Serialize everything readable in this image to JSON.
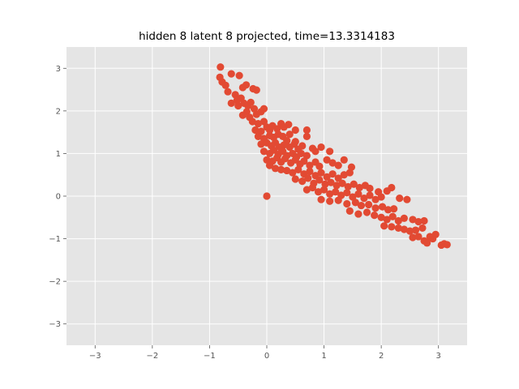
{
  "chart_data": {
    "type": "scatter",
    "title": "hidden 8 latent 8 projected, time=13.3314183",
    "xlabel": "",
    "ylabel": "",
    "xlim": [
      -3.5,
      3.5
    ],
    "ylim": [
      -3.5,
      3.5
    ],
    "xticks": [
      -3,
      -2,
      -1,
      0,
      1,
      2,
      3
    ],
    "yticks": [
      -3,
      -2,
      -1,
      0,
      1,
      2,
      3
    ],
    "xtick_labels": [
      "−3",
      "−2",
      "−1",
      "0",
      "1",
      "2",
      "3"
    ],
    "ytick_labels": [
      "−3",
      "−2",
      "−1",
      "0",
      "1",
      "2",
      "3"
    ],
    "grid": true,
    "style": "ggplot",
    "colors": {
      "background": "#e5e5e5",
      "grid": "#ffffff",
      "marker": "#e24a33",
      "tick_text": "#555555"
    },
    "series": [
      {
        "points": [
          [
            -0.81,
            3.03
          ],
          [
            -0.82,
            2.79
          ],
          [
            -0.78,
            2.68
          ],
          [
            -0.62,
            2.87
          ],
          [
            -0.48,
            2.83
          ],
          [
            -0.42,
            2.55
          ],
          [
            -0.36,
            2.61
          ],
          [
            -0.24,
            2.52
          ],
          [
            -0.18,
            2.49
          ],
          [
            -0.72,
            2.6
          ],
          [
            -0.68,
            2.45
          ],
          [
            -0.55,
            2.38
          ],
          [
            -0.52,
            2.25
          ],
          [
            -0.45,
            2.3
          ],
          [
            -0.62,
            2.18
          ],
          [
            -0.5,
            2.12
          ],
          [
            -0.4,
            2.18
          ],
          [
            -0.33,
            2.12
          ],
          [
            -0.28,
            2.2
          ],
          [
            -0.22,
            2.05
          ],
          [
            -0.35,
            1.98
          ],
          [
            -0.42,
            1.9
          ],
          [
            -0.3,
            1.85
          ],
          [
            -0.18,
            1.92
          ],
          [
            -0.1,
            1.98
          ],
          [
            -0.05,
            2.05
          ],
          [
            -0.25,
            1.75
          ],
          [
            -0.15,
            1.7
          ],
          [
            -0.05,
            1.75
          ],
          [
            0.0,
            1.62
          ],
          [
            -0.2,
            1.55
          ],
          [
            -0.1,
            1.52
          ],
          [
            0.05,
            1.55
          ],
          [
            0.1,
            1.65
          ],
          [
            0.18,
            1.58
          ],
          [
            0.25,
            1.7
          ],
          [
            0.3,
            1.62
          ],
          [
            0.38,
            1.68
          ],
          [
            0.5,
            1.55
          ],
          [
            0.7,
            1.55
          ],
          [
            -0.15,
            1.4
          ],
          [
            -0.05,
            1.35
          ],
          [
            0.05,
            1.42
          ],
          [
            0.12,
            1.38
          ],
          [
            0.2,
            1.45
          ],
          [
            0.28,
            1.4
          ],
          [
            0.35,
            1.3
          ],
          [
            -0.1,
            1.22
          ],
          [
            0.0,
            1.25
          ],
          [
            0.08,
            1.18
          ],
          [
            0.15,
            1.25
          ],
          [
            0.22,
            1.15
          ],
          [
            0.3,
            1.2
          ],
          [
            0.4,
            1.15
          ],
          [
            0.48,
            1.22
          ],
          [
            0.55,
            1.1
          ],
          [
            0.62,
            1.18
          ],
          [
            -0.05,
            1.05
          ],
          [
            0.05,
            1.0
          ],
          [
            0.12,
            1.08
          ],
          [
            0.2,
            0.98
          ],
          [
            0.28,
            1.05
          ],
          [
            0.35,
            0.95
          ],
          [
            0.45,
            1.0
          ],
          [
            0.52,
            0.92
          ],
          [
            0.6,
            1.0
          ],
          [
            0.7,
            0.95
          ],
          [
            0.85,
            1.05
          ],
          [
            0.95,
            1.15
          ],
          [
            0.0,
            0.85
          ],
          [
            0.1,
            0.82
          ],
          [
            0.18,
            0.9
          ],
          [
            0.25,
            0.8
          ],
          [
            0.32,
            0.88
          ],
          [
            0.42,
            0.78
          ],
          [
            0.5,
            0.85
          ],
          [
            0.58,
            0.75
          ],
          [
            0.65,
            0.82
          ],
          [
            0.75,
            0.72
          ],
          [
            0.85,
            0.8
          ],
          [
            0.92,
            0.7
          ],
          [
            1.05,
            0.85
          ],
          [
            1.15,
            0.78
          ],
          [
            1.25,
            0.72
          ],
          [
            0.05,
            0.72
          ],
          [
            0.15,
            0.65
          ],
          [
            0.25,
            0.62
          ],
          [
            0.35,
            0.6
          ],
          [
            0.45,
            0.55
          ],
          [
            0.55,
            0.62
          ],
          [
            0.65,
            0.52
          ],
          [
            0.75,
            0.58
          ],
          [
            0.85,
            0.48
          ],
          [
            0.95,
            0.55
          ],
          [
            1.05,
            0.45
          ],
          [
            1.15,
            0.52
          ],
          [
            1.25,
            0.42
          ],
          [
            1.35,
            0.5
          ],
          [
            1.45,
            0.55
          ],
          [
            1.48,
            0.68
          ],
          [
            1.35,
            0.85
          ],
          [
            0.5,
            0.4
          ],
          [
            0.62,
            0.35
          ],
          [
            0.72,
            0.42
          ],
          [
            0.82,
            0.3
          ],
          [
            0.92,
            0.38
          ],
          [
            1.02,
            0.28
          ],
          [
            1.12,
            0.32
          ],
          [
            1.22,
            0.25
          ],
          [
            1.32,
            0.3
          ],
          [
            1.42,
            0.22
          ],
          [
            1.52,
            0.28
          ],
          [
            1.62,
            0.2
          ],
          [
            1.72,
            0.25
          ],
          [
            1.8,
            0.18
          ],
          [
            0.7,
            0.15
          ],
          [
            0.8,
            0.2
          ],
          [
            0.9,
            0.1
          ],
          [
            1.0,
            0.15
          ],
          [
            1.1,
            0.05
          ],
          [
            1.2,
            0.1
          ],
          [
            1.3,
            0.02
          ],
          [
            1.4,
            0.08
          ],
          [
            1.5,
            -0.02
          ],
          [
            1.6,
            0.05
          ],
          [
            1.7,
            -0.05
          ],
          [
            1.8,
            0.02
          ],
          [
            1.9,
            -0.08
          ],
          [
            2.0,
            -0.02
          ],
          [
            2.1,
            0.12
          ],
          [
            2.18,
            0.2
          ],
          [
            0.95,
            -0.08
          ],
          [
            1.1,
            -0.12
          ],
          [
            1.25,
            -0.1
          ],
          [
            1.4,
            -0.18
          ],
          [
            1.55,
            -0.15
          ],
          [
            1.65,
            -0.22
          ],
          [
            1.78,
            -0.2
          ],
          [
            1.9,
            -0.28
          ],
          [
            2.02,
            -0.25
          ],
          [
            2.12,
            -0.32
          ],
          [
            2.22,
            -0.3
          ],
          [
            2.32,
            -0.05
          ],
          [
            2.45,
            -0.08
          ],
          [
            1.45,
            -0.35
          ],
          [
            1.6,
            -0.42
          ],
          [
            1.75,
            -0.38
          ],
          [
            1.88,
            -0.45
          ],
          [
            2.0,
            -0.5
          ],
          [
            2.1,
            -0.55
          ],
          [
            2.2,
            -0.48
          ],
          [
            2.3,
            -0.58
          ],
          [
            2.4,
            -0.52
          ],
          [
            2.55,
            -0.55
          ],
          [
            2.65,
            -0.6
          ],
          [
            2.75,
            -0.58
          ],
          [
            2.05,
            -0.7
          ],
          [
            2.18,
            -0.72
          ],
          [
            2.3,
            -0.75
          ],
          [
            2.4,
            -0.78
          ],
          [
            2.5,
            -0.82
          ],
          [
            2.6,
            -0.8
          ],
          [
            2.72,
            -0.75
          ],
          [
            2.55,
            -0.97
          ],
          [
            2.65,
            -0.95
          ],
          [
            2.75,
            -1.05
          ],
          [
            2.8,
            -1.1
          ],
          [
            2.9,
            -1.0
          ],
          [
            2.95,
            -0.9
          ],
          [
            2.85,
            -0.95
          ],
          [
            3.05,
            -1.15
          ],
          [
            3.1,
            -1.12
          ],
          [
            3.15,
            -1.14
          ],
          [
            1.95,
            0.1
          ],
          [
            0.5,
            1.28
          ],
          [
            0.4,
            1.45
          ],
          [
            0.0,
            0.0
          ],
          [
            0.7,
            1.4
          ],
          [
            1.1,
            1.05
          ],
          [
            0.8,
            1.12
          ]
        ]
      }
    ]
  }
}
